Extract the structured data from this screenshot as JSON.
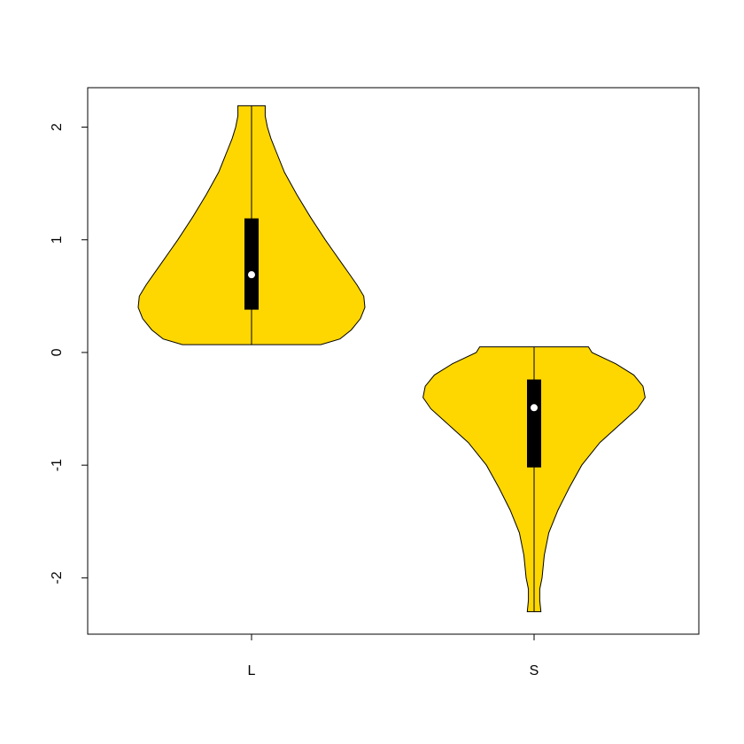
{
  "chart_data": {
    "type": "violin",
    "title": "",
    "xlabel": "",
    "ylabel": "",
    "ylim": [
      -2.5,
      2.35
    ],
    "y_ticks": [
      -2,
      -1,
      0,
      1,
      2
    ],
    "y_tick_labels": [
      "-2",
      "-1",
      "0",
      "1",
      "2"
    ],
    "categories": [
      "L",
      "S"
    ],
    "fill_color": "#FFD700",
    "box_color": "#000000",
    "median_color": "#FFFFFF",
    "grid": false,
    "legend": "none",
    "violins": [
      {
        "category": "L",
        "min": 0.07,
        "q1": 0.38,
        "median": 0.69,
        "q3": 1.19,
        "max": 2.19,
        "density": [
          [
            0.07,
            0.61
          ],
          [
            0.12,
            0.78
          ],
          [
            0.2,
            0.88
          ],
          [
            0.3,
            0.96
          ],
          [
            0.4,
            1.0
          ],
          [
            0.5,
            0.99
          ],
          [
            0.6,
            0.93
          ],
          [
            0.7,
            0.86
          ],
          [
            0.8,
            0.79
          ],
          [
            0.9,
            0.72
          ],
          [
            1.0,
            0.65
          ],
          [
            1.2,
            0.52
          ],
          [
            1.4,
            0.4
          ],
          [
            1.6,
            0.29
          ],
          [
            1.8,
            0.21
          ],
          [
            1.9,
            0.17
          ],
          [
            2.0,
            0.14
          ],
          [
            2.1,
            0.12
          ],
          [
            2.19,
            0.12
          ]
        ]
      },
      {
        "category": "S",
        "min": -2.3,
        "q1": -1.02,
        "median": -0.49,
        "q3": -0.24,
        "max": 0.05,
        "density": [
          [
            -2.3,
            0.06
          ],
          [
            -2.2,
            0.05
          ],
          [
            -2.1,
            0.05
          ],
          [
            -2.0,
            0.07
          ],
          [
            -1.8,
            0.09
          ],
          [
            -1.6,
            0.13
          ],
          [
            -1.4,
            0.21
          ],
          [
            -1.2,
            0.31
          ],
          [
            -1.0,
            0.42
          ],
          [
            -0.8,
            0.58
          ],
          [
            -0.6,
            0.8
          ],
          [
            -0.5,
            0.91
          ],
          [
            -0.4,
            0.98
          ],
          [
            -0.3,
            0.96
          ],
          [
            -0.2,
            0.88
          ],
          [
            -0.1,
            0.72
          ],
          [
            0.0,
            0.51
          ],
          [
            0.05,
            0.48
          ]
        ]
      }
    ]
  }
}
